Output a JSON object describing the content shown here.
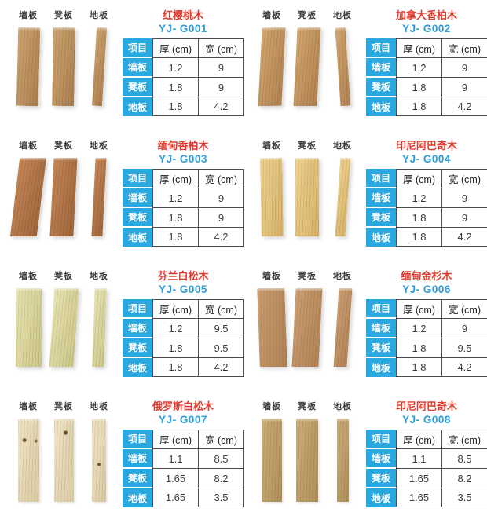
{
  "colors": {
    "accent_cyan": "#29a9e0",
    "title_red": "#e23a2e",
    "model_blue": "#2e9cd6",
    "table_border": "#4d4d4d"
  },
  "plank_labels": [
    "墙板",
    "凳板",
    "地板"
  ],
  "table": {
    "headers": {
      "item": "项目",
      "thickness": "厚 (cm)",
      "width": "宽 (cm)"
    },
    "row_labels": [
      "墙板",
      "凳板",
      "地板"
    ]
  },
  "products": [
    {
      "name": "红樱桃木",
      "model": "YJ- G001",
      "wood": {
        "light": "#c9a06b",
        "dark": "#a87947"
      },
      "specs": [
        {
          "item": "墙板",
          "thickness_cm": "1.2",
          "width_cm": "9"
        },
        {
          "item": "凳板",
          "thickness_cm": "1.8",
          "width_cm": "9"
        },
        {
          "item": "地板",
          "thickness_cm": "1.8",
          "width_cm": "4.2"
        }
      ]
    },
    {
      "name": "加拿大香柏木",
      "model": "YJ- G002",
      "wood": {
        "light": "#cfa269",
        "dark": "#ad7c49"
      },
      "specs": [
        {
          "item": "墙板",
          "thickness_cm": "1.2",
          "width_cm": "9"
        },
        {
          "item": "凳板",
          "thickness_cm": "1.8",
          "width_cm": "9"
        },
        {
          "item": "地板",
          "thickness_cm": "1.8",
          "width_cm": "4.2"
        }
      ]
    },
    {
      "name": "缅甸香柏木",
      "model": "YJ- G003",
      "wood": {
        "light": "#c08050",
        "dark": "#9a5f33"
      },
      "specs": [
        {
          "item": "墙板",
          "thickness_cm": "1.2",
          "width_cm": "9"
        },
        {
          "item": "凳板",
          "thickness_cm": "1.8",
          "width_cm": "9"
        },
        {
          "item": "地板",
          "thickness_cm": "1.8",
          "width_cm": "4.2"
        }
      ]
    },
    {
      "name": "印尼阿巴奇木",
      "model": "YJ- G004",
      "wood": {
        "light": "#ecd08c",
        "dark": "#d4ae62"
      },
      "specs": [
        {
          "item": "墙板",
          "thickness_cm": "1.2",
          "width_cm": "9"
        },
        {
          "item": "凳板",
          "thickness_cm": "1.8",
          "width_cm": "9"
        },
        {
          "item": "地板",
          "thickness_cm": "1.8",
          "width_cm": "4.2"
        }
      ]
    },
    {
      "name": "芬兰白松木",
      "model": "YJ- G005",
      "wood": {
        "light": "#e6e2b0",
        "dark": "#c9c382"
      },
      "specs": [
        {
          "item": "墙板",
          "thickness_cm": "1.2",
          "width_cm": "9.5"
        },
        {
          "item": "凳板",
          "thickness_cm": "1.8",
          "width_cm": "9.5"
        },
        {
          "item": "地板",
          "thickness_cm": "1.8",
          "width_cm": "4.2"
        }
      ]
    },
    {
      "name": "缅甸金杉木",
      "model": "YJ- G006",
      "wood": {
        "light": "#c99a6d",
        "dark": "#ab7c4e"
      },
      "specs": [
        {
          "item": "墙板",
          "thickness_cm": "1.2",
          "width_cm": "9"
        },
        {
          "item": "凳板",
          "thickness_cm": "1.8",
          "width_cm": "9.5"
        },
        {
          "item": "地板",
          "thickness_cm": "1.8",
          "width_cm": "4.2"
        }
      ]
    },
    {
      "name": "俄罗斯白松木",
      "model": "YJ- G007",
      "wood": {
        "light": "#eee3c4",
        "dark": "#d8c89e"
      },
      "specs": [
        {
          "item": "墙板",
          "thickness_cm": "1.1",
          "width_cm": "8.5"
        },
        {
          "item": "凳板",
          "thickness_cm": "1.65",
          "width_cm": "8.2"
        },
        {
          "item": "地板",
          "thickness_cm": "1.65",
          "width_cm": "3.5"
        }
      ]
    },
    {
      "name": "印尼阿巴奇木",
      "model": "YJ- G008",
      "wood": {
        "light": "#c9aa74",
        "dark": "#ab8a52"
      },
      "specs": [
        {
          "item": "墙板",
          "thickness_cm": "1.1",
          "width_cm": "8.5"
        },
        {
          "item": "凳板",
          "thickness_cm": "1.65",
          "width_cm": "8.2"
        },
        {
          "item": "地板",
          "thickness_cm": "1.65",
          "width_cm": "3.5"
        }
      ]
    }
  ]
}
